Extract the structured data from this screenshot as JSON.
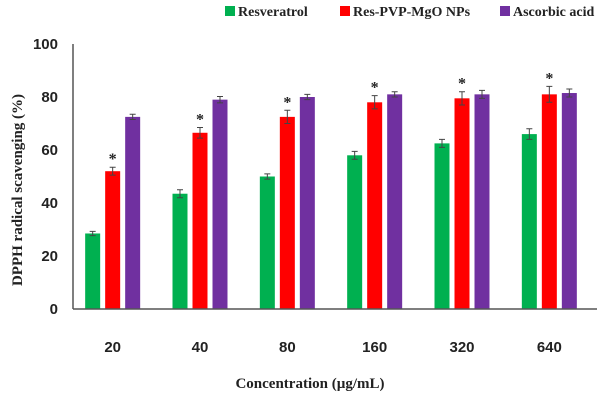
{
  "chart_data": {
    "type": "bar",
    "title": "",
    "xlabel": "Concentration  (µg/mL)",
    "ylabel": "DPPH  radical  scavenging  (%)",
    "ylim": [
      0,
      100
    ],
    "yticks": [
      0,
      20,
      40,
      60,
      80,
      100
    ],
    "categories": [
      "20",
      "40",
      "80",
      "160",
      "320",
      "640"
    ],
    "legend_position": "top",
    "grid": false,
    "series": [
      {
        "name": "Resveratrol",
        "color": "#00b050",
        "values": [
          28.5,
          43.5,
          50,
          58,
          62.5,
          66
        ],
        "errors": [
          0.8,
          1.5,
          1,
          1.5,
          1.5,
          2
        ]
      },
      {
        "name": "Res-PVP-MgO NPs",
        "color": "#ff0000",
        "values": [
          52,
          66.5,
          72.5,
          78,
          79.5,
          81
        ],
        "errors": [
          1.5,
          2,
          2.5,
          2.5,
          2.5,
          3
        ],
        "significance": [
          "*",
          "*",
          "*",
          "*",
          "*",
          "*"
        ]
      },
      {
        "name": "Ascorbic acid",
        "color": "#7030a0",
        "values": [
          72.5,
          79,
          80,
          81,
          81,
          81.5
        ],
        "errors": [
          1,
          1.2,
          1,
          1,
          1.5,
          1.5
        ]
      }
    ]
  }
}
